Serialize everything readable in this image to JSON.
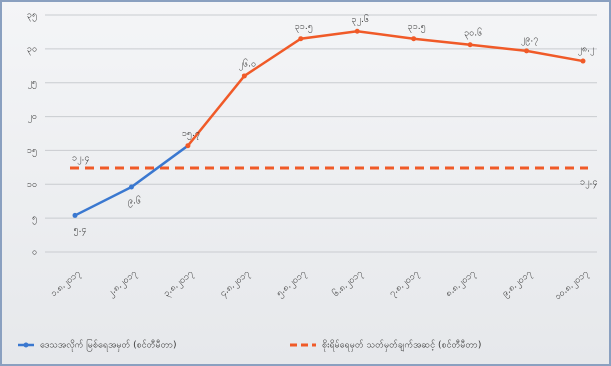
{
  "chart_data": {
    "type": "line",
    "categories": [
      "၁.၈.၂၀၁၇",
      "၂.၈.၂၀၁၇",
      "၃.၈.၂၀၁၇",
      "၄.၈.၂၀၁၇",
      "၅.၈.၂၀၁၇",
      "၆.၈.၂၀၁၇",
      "၇.၈.၂၀၁၇",
      "၈.၈.၂၀၁၇",
      "၉.၈.၂၀၁၇",
      "၁၀.၈.၂၀၁၇"
    ],
    "series": [
      {
        "name": "ဒေသအလိုက် မြစ်ရေအမှတ် (စင်တီမီတာ)",
        "color": "#3a78d0",
        "color2": "#f05a28",
        "color_change_index": 2,
        "values": [
          5.4,
          9.6,
          15.7,
          26.0,
          31.5,
          32.6,
          31.5,
          30.6,
          29.7,
          28.2
        ],
        "value_labels": [
          "၅.၄",
          "၉.၆",
          "၁၅.၇",
          "၂၆.၀",
          "၃၁.၅",
          "၃၂.၆",
          "၃၁.၅",
          "၃၀.၆",
          "၂၉.၇",
          "၂၈.၂"
        ]
      }
    ],
    "threshold": {
      "name": "စိုးရိမ်ရေမှတ် သတ်မှတ်ချက်အဆင့် (စင်တီမီတာ)",
      "color": "#f05a28",
      "value": 12.4,
      "label": "၁၂.၄"
    },
    "ylim": [
      0,
      35
    ],
    "yticks": [
      {
        "value": 0,
        "label": "၀"
      },
      {
        "value": 5,
        "label": "၅"
      },
      {
        "value": 10,
        "label": "၁၀"
      },
      {
        "value": 15,
        "label": "၁၅"
      },
      {
        "value": 20,
        "label": "၂၀"
      },
      {
        "value": 25,
        "label": "၂၅"
      },
      {
        "value": 30,
        "label": "၃၀"
      },
      {
        "value": 35,
        "label": "၃၅"
      }
    ],
    "grid": true
  }
}
